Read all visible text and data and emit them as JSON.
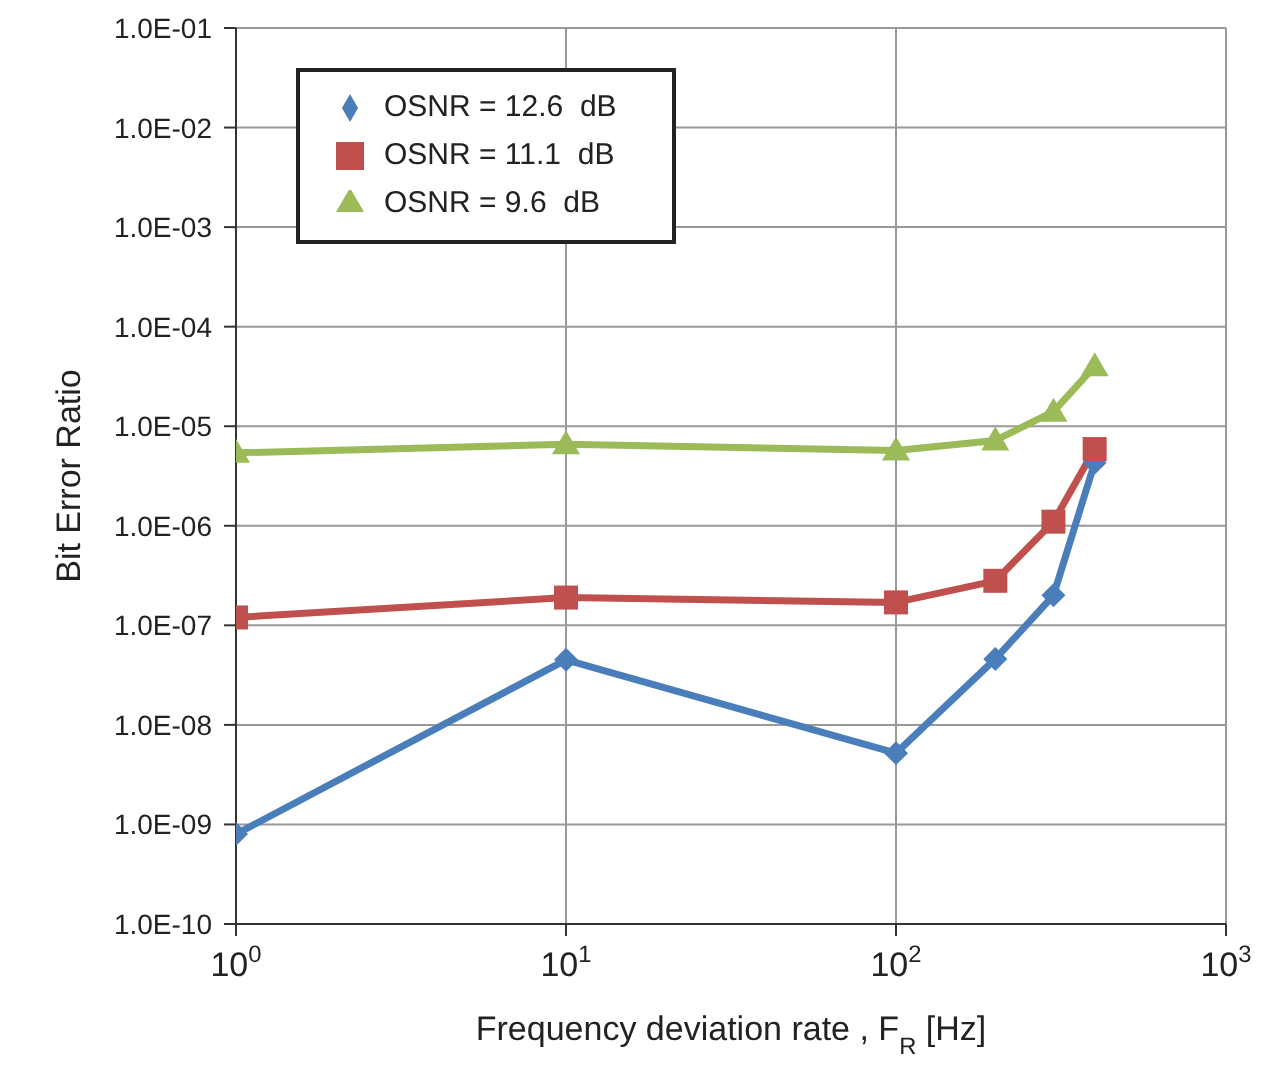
{
  "chart_data": {
    "type": "line",
    "xlabel": "Frequency deviation rate , F$_{R}$ [Hz]",
    "ylabel": "Bit Error Ratio",
    "log": "xy",
    "grid": true,
    "legend": "top left",
    "line_style": "solid",
    "x": [
      1,
      10,
      100,
      200,
      300,
      400
    ],
    "xlim": [
      1,
      1000
    ],
    "xticks": [
      {
        "value": 1,
        "label": "10$^{0}$"
      },
      {
        "value": 10,
        "label": "10$^{1}$"
      },
      {
        "value": 100,
        "label": "10$^{2}$"
      },
      {
        "value": 1000,
        "label": "10$^{3}$"
      }
    ],
    "ylim": [
      1e-10,
      0.1
    ],
    "yticks": [
      {
        "value": 1e-10,
        "label": "1.0E-10"
      },
      {
        "value": 1e-09,
        "label": "1.0E-09"
      },
      {
        "value": 1e-08,
        "label": "1.0E-08"
      },
      {
        "value": 1e-07,
        "label": "1.0E-07"
      },
      {
        "value": 1e-06,
        "label": "1.0E-06"
      },
      {
        "value": 1e-05,
        "label": "1.0E-05"
      },
      {
        "value": 0.0001,
        "label": "1.0E-04"
      },
      {
        "value": 0.001,
        "label": "1.0E-03"
      },
      {
        "value": 0.01,
        "label": "1.0E-02"
      },
      {
        "value": 0.1,
        "label": "1.0E-01"
      }
    ],
    "series": [
      {
        "name": "OSNR = 12.6  dB",
        "color": "#4a7ebb",
        "marker": "diamond",
        "values": [
          8e-10,
          4.5e-08,
          5.2e-09,
          4.6e-08,
          2e-07,
          4.3e-06
        ]
      },
      {
        "name": "OSNR = 11.1  dB",
        "color": "#c0504d",
        "marker": "square",
        "values": [
          1.2e-07,
          1.9e-07,
          1.7e-07,
          2.8e-07,
          1.1e-06,
          5.9e-06
        ]
      },
      {
        "name": "OSNR = 9.6  dB",
        "color": "#9bbb59",
        "marker": "triangle",
        "values": [
          5.4e-06,
          6.6e-06,
          5.7e-06,
          7.2e-06,
          1.4e-05,
          4e-05
        ]
      }
    ]
  }
}
